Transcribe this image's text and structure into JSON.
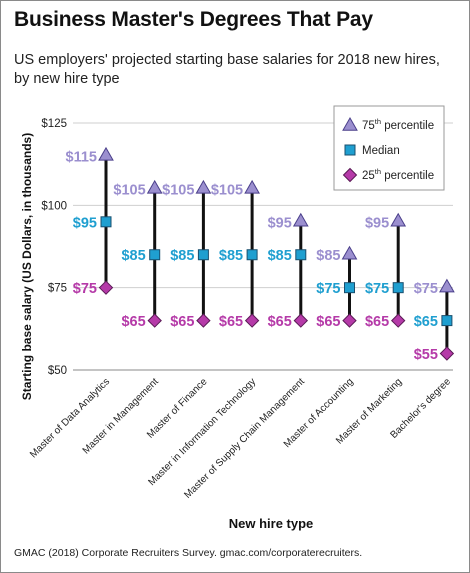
{
  "title": "Business Master's Degrees That Pay",
  "subtitle": "US employers' projected starting base salaries for 2018 new hires, by new hire type",
  "source": "GMAC (2018) Corporate Recruiters Survey. gmac.com/corporaterecruiters.",
  "colors": {
    "p75": "#9b8fcf",
    "median": "#1f9fd0",
    "p25": "#b53aa8",
    "line": "#111111",
    "grid": "#cfcfcf"
  },
  "chart_data": {
    "type": "range",
    "xlabel": "New hire type",
    "ylabel": "Starting base salary (US Dollars, in thousands)",
    "ylim": [
      50,
      125
    ],
    "yticks": [
      50,
      75,
      100,
      125
    ],
    "ytick_labels": [
      "$50",
      "$75",
      "$100",
      "$125"
    ],
    "grid": true,
    "legend_position": "top-right",
    "categories": [
      "Master of Data Analytics",
      "Master in Management",
      "Master of Finance",
      "Master in Information Technology",
      "Master of Supply Chain Management",
      "Master of Accounting",
      "Master of Marketing",
      "Bachelor's degree"
    ],
    "series": [
      {
        "name": "75th percentile",
        "marker": "triangle",
        "values": [
          115,
          105,
          105,
          105,
          95,
          85,
          95,
          75
        ]
      },
      {
        "name": "Median",
        "marker": "square",
        "values": [
          95,
          85,
          85,
          85,
          85,
          75,
          75,
          65
        ]
      },
      {
        "name": "25th percentile",
        "marker": "diamond",
        "values": [
          75,
          65,
          65,
          65,
          65,
          65,
          65,
          55
        ]
      }
    ],
    "value_labels": {
      "p75": [
        "$115",
        "$105",
        "$105",
        "$105",
        "$95",
        "$85",
        "$95",
        "$75"
      ],
      "median": [
        "$95",
        "$85",
        "$85",
        "$85",
        "$85",
        "$75",
        "$75",
        "$65"
      ],
      "p25": [
        "$75",
        "$65",
        "$65",
        "$65",
        "$65",
        "$65",
        "$65",
        "$55"
      ]
    },
    "legend": {
      "p75_prefix": "75",
      "p75_sup": "th",
      "p75_suffix": " percentile",
      "median": "Median",
      "p25_prefix": "25",
      "p25_sup": "th",
      "p25_suffix": " percentile"
    }
  }
}
